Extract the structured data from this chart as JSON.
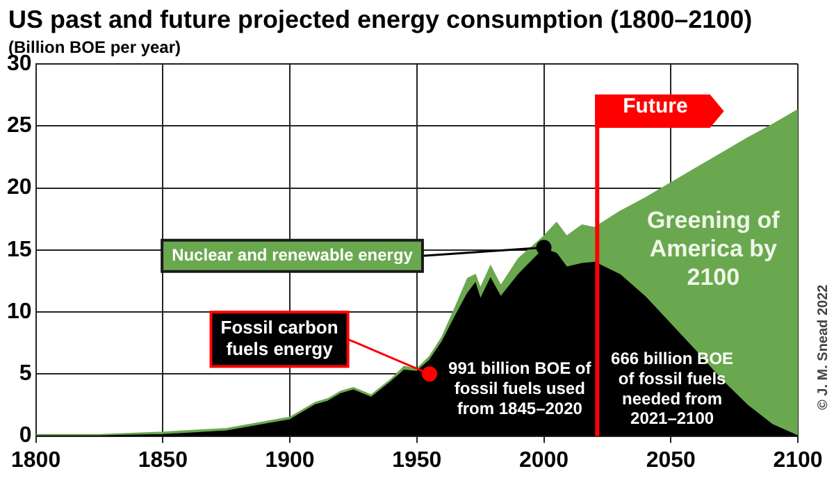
{
  "chart_data": {
    "type": "area",
    "title": "US past and future projected energy consumption (1800–2100)",
    "subtitle": "(Billion BOE per year)",
    "stacked": true,
    "x": [
      1800,
      1825,
      1850,
      1875,
      1900,
      1910,
      1915,
      1920,
      1925,
      1932,
      1940,
      1945,
      1950,
      1955,
      1960,
      1965,
      1970,
      1973,
      1975,
      1979,
      1983,
      1990,
      2000,
      2005,
      2009,
      2015,
      2020,
      2030,
      2040,
      2050,
      2060,
      2070,
      2080,
      2090,
      2100
    ],
    "series": [
      {
        "color": "#000000",
        "values": [
          0.0,
          0.0,
          0.1,
          0.4,
          1.3,
          2.5,
          2.8,
          3.4,
          3.7,
          3.1,
          4.4,
          5.3,
          5.2,
          6.1,
          7.6,
          9.6,
          11.5,
          12.3,
          11.0,
          12.7,
          11.2,
          13.0,
          15.1,
          14.7,
          13.6,
          13.9,
          14.0,
          13.0,
          11.2,
          9.0,
          6.8,
          4.5,
          2.5,
          0.9,
          0.0
        ]
      },
      {
        "color": "#6aa84f",
        "values": [
          0.1,
          0.1,
          0.2,
          0.2,
          0.2,
          0.2,
          0.2,
          0.2,
          0.2,
          0.2,
          0.2,
          0.3,
          0.2,
          0.3,
          0.4,
          0.7,
          1.2,
          0.7,
          0.9,
          1.0,
          0.9,
          1.3,
          1.0,
          2.5,
          2.5,
          3.1,
          2.8,
          5.1,
          8.0,
          11.4,
          14.8,
          18.3,
          21.5,
          24.2,
          26.3
        ]
      }
    ],
    "xlim": [
      1800,
      2100
    ],
    "xticks": [
      1800,
      1850,
      1900,
      1950,
      2000,
      2050,
      2100
    ],
    "ylim": [
      0,
      30
    ],
    "yticks": [
      0,
      5,
      10,
      15,
      20,
      25,
      30
    ],
    "grid": true,
    "ref_lines": [
      {
        "axis": "x",
        "value": 2021,
        "label": "Future",
        "color": "#ff0000"
      }
    ],
    "annotations": [
      {
        "text": "Nuclear and renewable energy",
        "x": 2000,
        "y": 15.2
      },
      {
        "text": "Fossil carbon fuels energy",
        "x": 1955,
        "y": 5.0
      },
      "991 billion BOE of fossil fuels used from 1845–2020",
      "666 billion BOE of fossil fuels needed from 2021–2100",
      "Greening of America by 2100",
      "© J. M. Snead 2022"
    ]
  }
}
